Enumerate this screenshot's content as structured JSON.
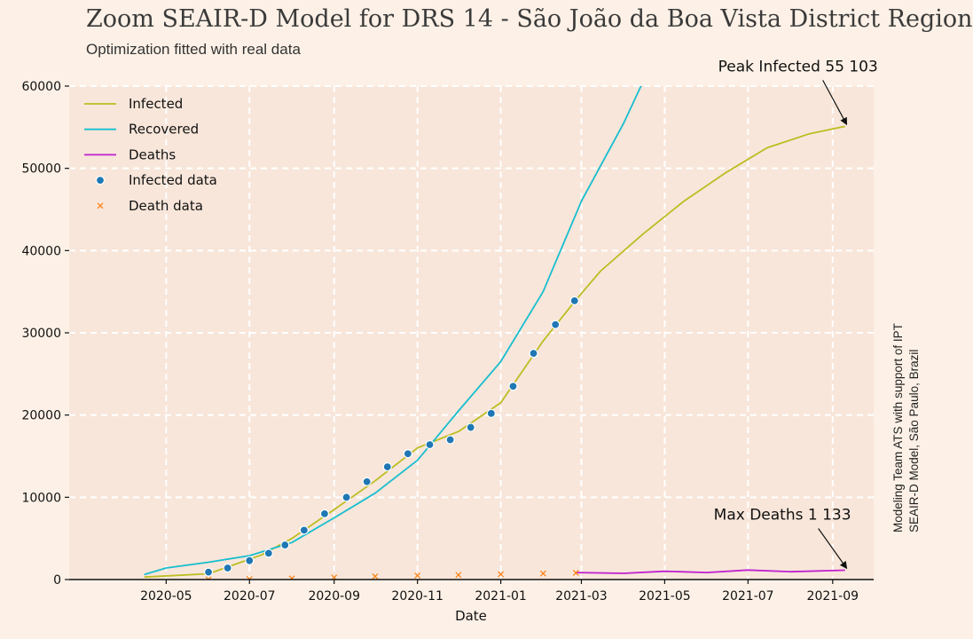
{
  "chart_data": {
    "type": "line",
    "title": "Zoom SEAIR-D Model for DRS 14 - São João da Boa Vista District Region",
    "subtitle": "Optimization fitted with real data",
    "xlabel": "Date",
    "ylabel": "",
    "side_note": [
      "Modeling Team ATS with support of IPT",
      "SEAIR-D Model, São Paulo, Brazil"
    ],
    "xlim": [
      "2020-02-20",
      "2021-10-01"
    ],
    "ylim": [
      0,
      60000
    ],
    "grid": true,
    "legend_position": "top-left",
    "x_ticks": [
      "2020-05",
      "2020-07",
      "2020-09",
      "2020-11",
      "2021-01",
      "2021-03",
      "2021-05",
      "2021-07",
      "2021-09"
    ],
    "y_ticks": [
      0,
      10000,
      20000,
      30000,
      40000,
      50000,
      60000
    ],
    "colors": {
      "infected": "#bcbd22",
      "recovered": "#17becf",
      "deaths": "#c020d0",
      "infected_data": "#1f77b4",
      "death_data": "#ff7f0e",
      "grid": "#ffffff",
      "plot_bg": "#f8e6da"
    },
    "series": [
      {
        "name": "Infected",
        "style": "line",
        "x": [
          "2020-04-15",
          "2020-06-01",
          "2020-07-10",
          "2020-08-01",
          "2020-09-01",
          "2020-10-01",
          "2020-11-01",
          "2020-12-01",
          "2021-01-01",
          "2021-02-01",
          "2021-02-25",
          "2021-03-15",
          "2021-04-15",
          "2021-05-15",
          "2021-06-15",
          "2021-07-15",
          "2021-08-15",
          "2021-09-10"
        ],
        "y": [
          300,
          700,
          3000,
          5000,
          8500,
          12000,
          16000,
          18000,
          21500,
          29000,
          34000,
          37500,
          42000,
          46000,
          49500,
          52500,
          54200,
          55103
        ]
      },
      {
        "name": "Recovered",
        "style": "line",
        "x": [
          "2020-04-15",
          "2020-05-01",
          "2020-06-01",
          "2020-07-01",
          "2020-08-01",
          "2020-09-01",
          "2020-10-01",
          "2020-11-01",
          "2020-12-01",
          "2021-01-01",
          "2021-02-01",
          "2021-03-01",
          "2021-04-01",
          "2021-04-15"
        ],
        "y": [
          600,
          1400,
          2100,
          2900,
          4500,
          7500,
          10500,
          14500,
          20500,
          26500,
          35000,
          46000,
          55500,
          60500
        ]
      },
      {
        "name": "Deaths",
        "style": "line",
        "x": [
          "2021-02-25",
          "2021-04-01",
          "2021-05-01",
          "2021-06-01",
          "2021-07-01",
          "2021-08-01",
          "2021-09-10"
        ],
        "y": [
          850,
          750,
          1000,
          850,
          1150,
          950,
          1133
        ]
      },
      {
        "name": "Infected data",
        "style": "marker",
        "x": [
          "2020-06-01",
          "2020-06-15",
          "2020-07-01",
          "2020-07-15",
          "2020-07-27",
          "2020-08-10",
          "2020-08-25",
          "2020-09-10",
          "2020-09-25",
          "2020-10-10",
          "2020-10-25",
          "2020-11-10",
          "2020-11-25",
          "2020-12-10",
          "2020-12-25",
          "2021-01-10",
          "2021-01-25",
          "2021-02-10",
          "2021-02-24"
        ],
        "y": [
          900,
          1400,
          2300,
          3200,
          4200,
          6000,
          8000,
          10000,
          11900,
          13700,
          15300,
          16400,
          17000,
          18500,
          20200,
          23500,
          27500,
          31000,
          33900
        ]
      },
      {
        "name": "Death data",
        "style": "marker",
        "x": [
          "2020-06-01",
          "2020-07-01",
          "2020-08-01",
          "2020-09-01",
          "2020-10-01",
          "2020-11-01",
          "2020-12-01",
          "2021-01-01",
          "2021-02-01",
          "2021-02-25"
        ],
        "y": [
          20,
          60,
          130,
          250,
          380,
          480,
          560,
          640,
          740,
          820
        ]
      }
    ],
    "annotations": [
      {
        "text": "Peak Infected 55 103",
        "x": "2021-09-10",
        "y": 55103
      },
      {
        "text": "Max Deaths 1 133",
        "x": "2021-09-10",
        "y": 1133
      }
    ]
  }
}
